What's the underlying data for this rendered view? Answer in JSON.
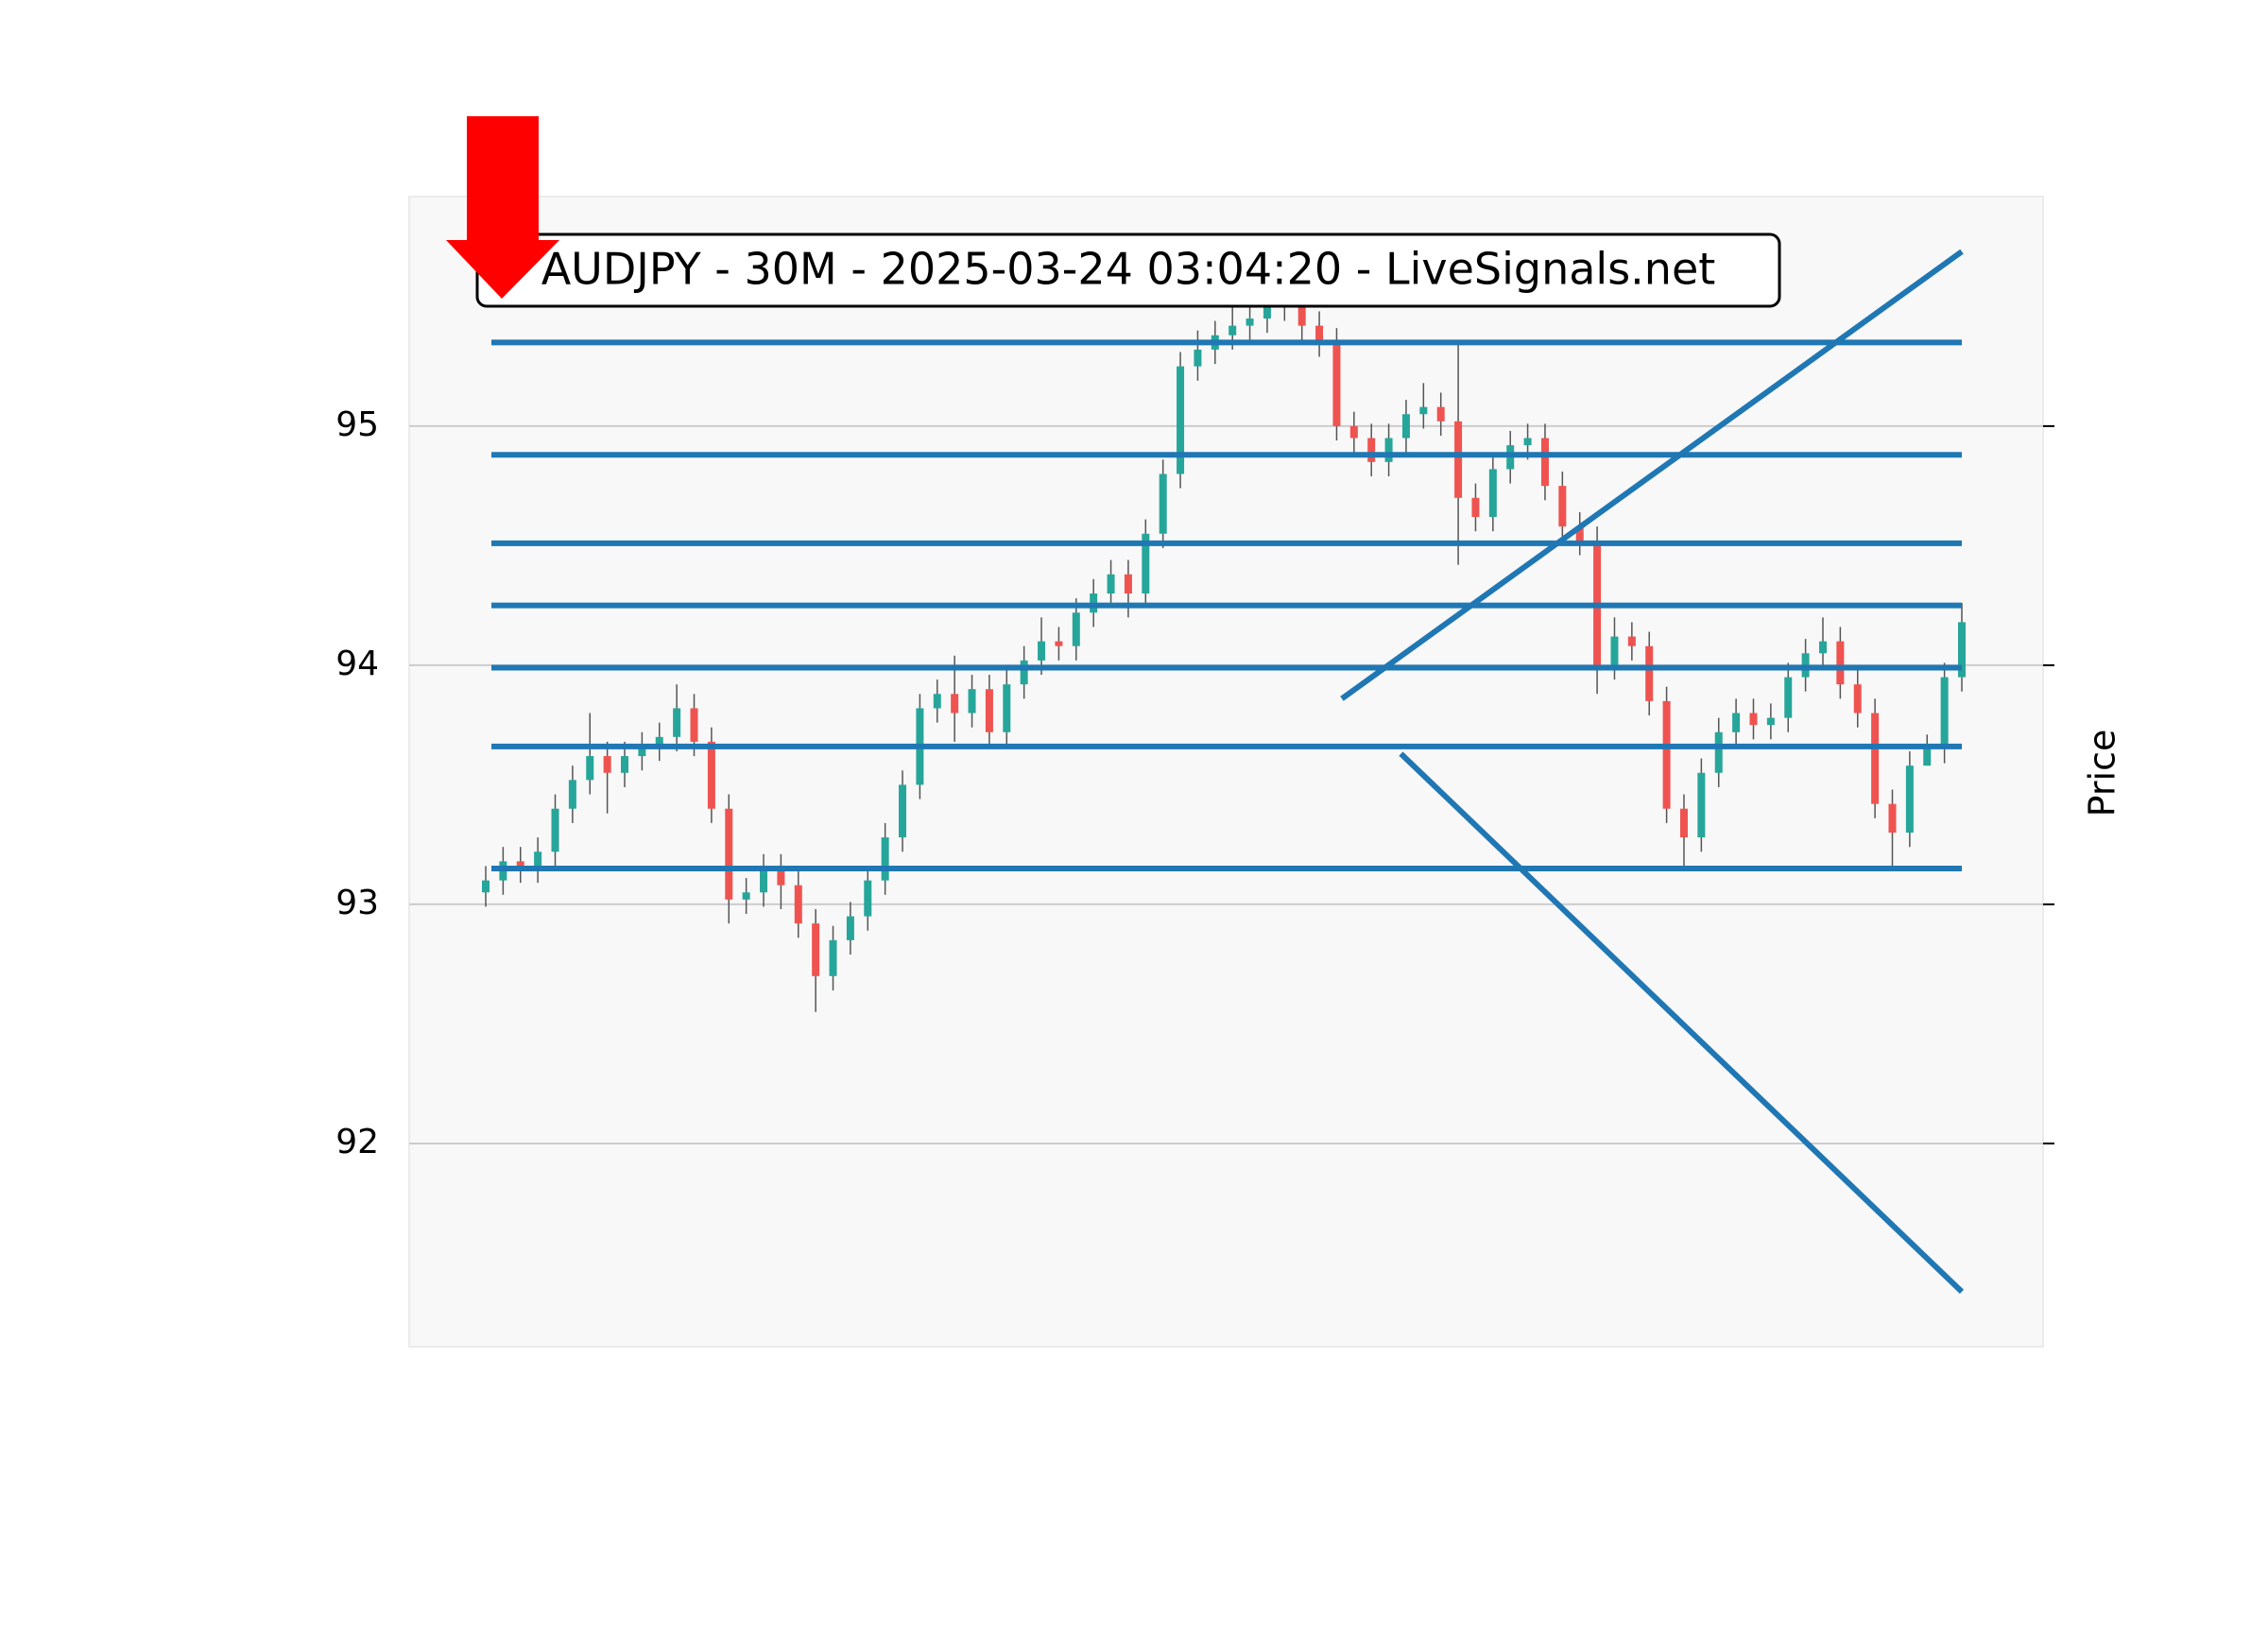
{
  "chart_data": {
    "type": "candlestick",
    "title": "AUDJPY - 30M - 2025-03-24 03:04:20 - LiveSignals.net",
    "y_label": "Price",
    "ylim": [
      91.15,
      95.96
    ],
    "yticks": [
      92,
      93,
      94,
      95
    ],
    "grid": true,
    "up_color": "#26a69a",
    "down_color": "#ef5350",
    "open": [
      93.05,
      93.1,
      93.18,
      93.15,
      93.22,
      93.4,
      93.52,
      93.62,
      93.55,
      93.62,
      93.66,
      93.7,
      93.82,
      93.68,
      93.4,
      93.02,
      93.05,
      93.15,
      93.08,
      92.92,
      92.7,
      92.85,
      92.95,
      93.1,
      93.28,
      93.5,
      93.82,
      93.88,
      93.8,
      93.9,
      93.72,
      93.92,
      94.02,
      94.1,
      94.08,
      94.22,
      94.3,
      94.38,
      94.3,
      94.55,
      94.8,
      95.25,
      95.32,
      95.38,
      95.42,
      95.45,
      95.5,
      95.55,
      95.42,
      95.35,
      95.0,
      94.95,
      94.85,
      94.95,
      95.05,
      95.08,
      95.02,
      94.7,
      94.62,
      94.82,
      94.92,
      94.95,
      94.75,
      94.58,
      94.52,
      94.0,
      94.12,
      94.08,
      93.85,
      93.4,
      93.28,
      93.55,
      93.72,
      93.8,
      93.75,
      93.78,
      93.95,
      94.05,
      94.1,
      93.92,
      93.8,
      93.42,
      93.3,
      93.58,
      93.65,
      93.95
    ],
    "high": [
      93.16,
      93.24,
      93.24,
      93.28,
      93.46,
      93.58,
      93.8,
      93.68,
      93.68,
      93.72,
      93.76,
      93.92,
      93.88,
      93.74,
      93.46,
      93.11,
      93.21,
      93.21,
      93.14,
      92.98,
      92.91,
      93.01,
      93.16,
      93.34,
      93.56,
      93.88,
      93.94,
      94.04,
      93.96,
      93.96,
      93.98,
      94.08,
      94.2,
      94.16,
      94.28,
      94.36,
      94.44,
      94.44,
      94.61,
      94.86,
      95.31,
      95.4,
      95.44,
      95.52,
      95.51,
      95.56,
      95.61,
      95.61,
      95.48,
      95.41,
      95.06,
      95.01,
      95.01,
      95.11,
      95.18,
      95.14,
      95.35,
      94.76,
      94.88,
      94.98,
      95.01,
      95.01,
      94.81,
      94.64,
      94.58,
      94.2,
      94.18,
      94.14,
      93.91,
      93.46,
      93.61,
      93.78,
      93.86,
      93.86,
      93.84,
      94.01,
      94.11,
      94.2,
      94.16,
      93.98,
      93.86,
      93.48,
      93.64,
      93.71,
      94.01,
      94.26
    ],
    "low": [
      92.99,
      93.04,
      93.09,
      93.09,
      93.16,
      93.34,
      93.46,
      93.38,
      93.49,
      93.56,
      93.6,
      93.64,
      93.62,
      93.34,
      92.92,
      92.96,
      92.99,
      92.98,
      92.86,
      92.55,
      92.64,
      92.79,
      92.89,
      93.04,
      93.22,
      93.44,
      93.76,
      93.68,
      93.74,
      93.66,
      93.66,
      93.86,
      93.96,
      94.02,
      94.02,
      94.16,
      94.24,
      94.2,
      94.24,
      94.49,
      94.74,
      95.19,
      95.26,
      95.32,
      95.36,
      95.39,
      95.44,
      95.36,
      95.29,
      94.94,
      94.89,
      94.79,
      94.79,
      94.89,
      94.99,
      94.96,
      94.42,
      94.56,
      94.56,
      94.76,
      94.86,
      94.69,
      94.52,
      94.46,
      93.88,
      93.94,
      94.02,
      93.79,
      93.34,
      93.15,
      93.22,
      93.49,
      93.66,
      93.69,
      93.69,
      93.72,
      93.89,
      93.99,
      93.86,
      93.74,
      93.36,
      93.16,
      93.24,
      93.59,
      93.59,
      93.89
    ],
    "close": [
      93.1,
      93.18,
      93.15,
      93.22,
      93.4,
      93.52,
      93.62,
      93.55,
      93.62,
      93.66,
      93.7,
      93.82,
      93.68,
      93.4,
      93.02,
      93.05,
      93.15,
      93.08,
      92.92,
      92.7,
      92.85,
      92.95,
      93.1,
      93.28,
      93.5,
      93.82,
      93.88,
      93.8,
      93.9,
      93.72,
      93.92,
      94.02,
      94.1,
      94.08,
      94.22,
      94.3,
      94.38,
      94.3,
      94.55,
      94.8,
      95.25,
      95.32,
      95.38,
      95.42,
      95.45,
      95.5,
      95.55,
      95.42,
      95.35,
      95.0,
      94.95,
      94.85,
      94.95,
      95.05,
      95.08,
      95.02,
      94.7,
      94.62,
      94.82,
      94.92,
      94.95,
      94.75,
      94.58,
      94.52,
      94.0,
      94.12,
      94.08,
      93.85,
      93.4,
      93.28,
      93.55,
      93.72,
      93.8,
      93.75,
      93.78,
      93.95,
      94.05,
      94.1,
      93.92,
      93.8,
      93.42,
      93.3,
      93.58,
      93.65,
      93.95,
      94.18
    ],
    "line_color": "#1f77b4",
    "levels": [
      95.35,
      94.88,
      94.51,
      94.25,
      93.99,
      93.66,
      93.15
    ],
    "trendlines": [
      {
        "x": [
          49.3,
          85
        ],
        "y": [
          93.86,
          95.73
        ]
      },
      {
        "x": [
          52.7,
          85
        ],
        "y": [
          93.63,
          91.38
        ]
      }
    ]
  }
}
